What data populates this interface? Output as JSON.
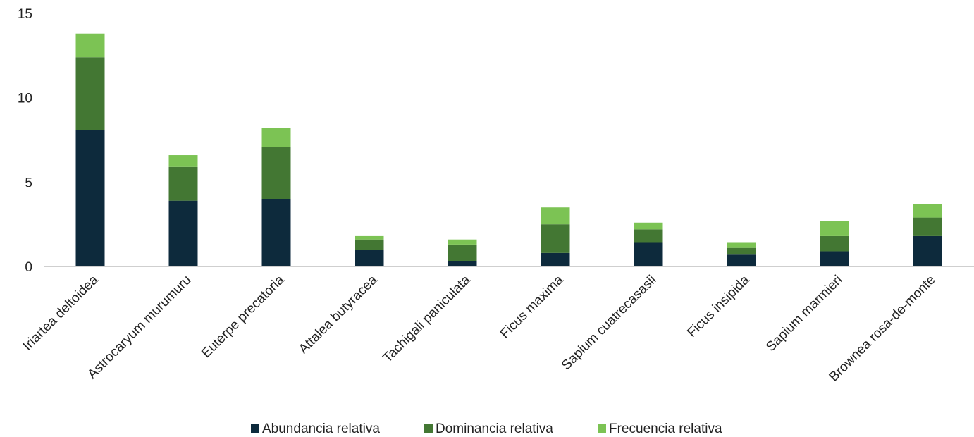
{
  "chart_data": {
    "type": "bar",
    "stacked": true,
    "categories": [
      "Iriartea deltoidea",
      "Astrocaryum murumuru",
      "Euterpe precatoria",
      "Attalea butyracea",
      "Tachigali paniculata",
      "Ficus maxima",
      "Sapium cuatrecasasii",
      "Ficus insipida",
      "Sapium marmieri",
      "Brownea rosa-de-monte"
    ],
    "series": [
      {
        "name": "Abundancia relativa",
        "color": "#0d2a3c",
        "values": [
          8.1,
          3.9,
          4.0,
          1.0,
          0.3,
          0.8,
          1.4,
          0.7,
          0.9,
          1.8
        ]
      },
      {
        "name": "Dominancia relativa",
        "color": "#437733",
        "values": [
          4.3,
          2.0,
          3.1,
          0.6,
          1.0,
          1.7,
          0.8,
          0.4,
          0.9,
          1.1
        ]
      },
      {
        "name": "Frecuencia relativa",
        "color": "#7cc354",
        "values": [
          1.4,
          0.7,
          1.1,
          0.2,
          0.3,
          1.0,
          0.4,
          0.3,
          0.9,
          0.8
        ]
      }
    ],
    "yticks": [
      "0",
      "5",
      "10",
      "15"
    ],
    "ylim": [
      0,
      15
    ],
    "grid": false,
    "legend_position": "bottom",
    "title": "",
    "xlabel": "",
    "ylabel": ""
  }
}
